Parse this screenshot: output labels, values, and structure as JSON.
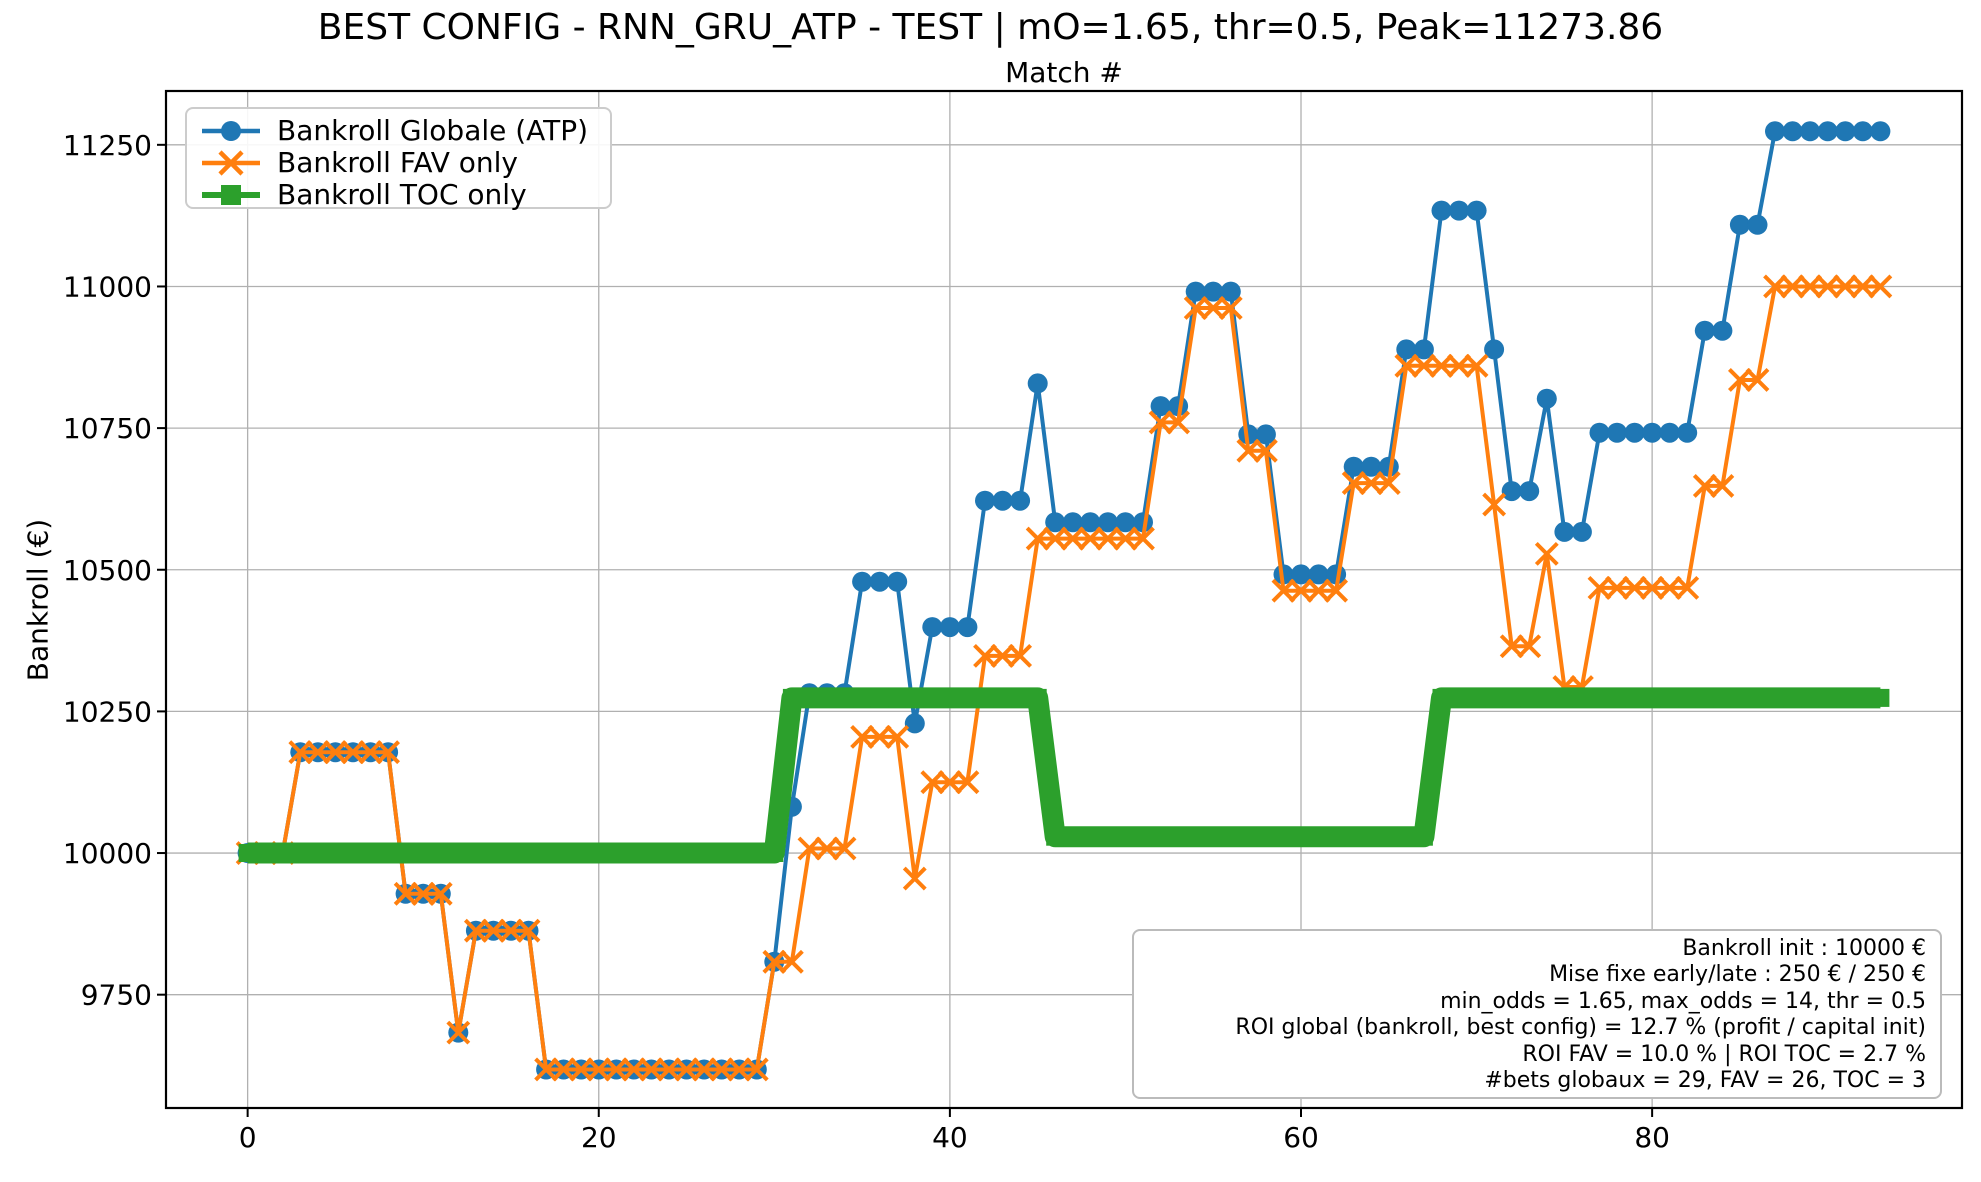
{
  "chart_data": {
    "type": "line",
    "title": "BEST CONFIG - RNN_GRU_ATP - TEST | mO=1.65, thr=0.5, Peak=11273.86",
    "axes_title": "Match #",
    "xlabel": "Match #",
    "ylabel": "Bankroll (€)",
    "x": "match index 0..93",
    "x_ticks": [
      0,
      20,
      40,
      60,
      80
    ],
    "y_ticks": [
      9750,
      10000,
      10250,
      10500,
      10750,
      11000,
      11250
    ],
    "xlim": [
      -4.65,
      97.65
    ],
    "ylim": [
      9550,
      11345
    ],
    "grid": true,
    "grid_color": "#b0b0b0",
    "spine_color": "#000000",
    "legend_position": "upper left",
    "peak": 11273.86,
    "series": [
      {
        "name": "Bankroll Globale (ATP)",
        "color": "#1f77b4",
        "marker": "circle",
        "linewidth": 4,
        "values": [
          10000,
          10000,
          10000,
          10178,
          10178,
          10178,
          10178,
          10178,
          10178,
          9928,
          9928,
          9928,
          9683,
          9863,
          9863,
          9863,
          9863,
          9618,
          9618,
          9618,
          9618,
          9618,
          9618,
          9618,
          9618,
          9618,
          9618,
          9618,
          9618,
          9618,
          9808,
          10081.86,
          10281.86,
          10281.86,
          10281.86,
          10478.86,
          10478.86,
          10478.86,
          10228.86,
          10398.86,
          10398.86,
          10398.86,
          10621.86,
          10621.86,
          10621.86,
          10828.86,
          10583.86,
          10583.86,
          10583.86,
          10583.86,
          10583.86,
          10583.86,
          10788.86,
          10788.86,
          10990.86,
          10990.86,
          10990.86,
          10738.86,
          10738.86,
          10491.86,
          10491.86,
          10491.86,
          10491.86,
          10681.86,
          10681.86,
          10681.86,
          10888.86,
          10888.86,
          11133.86,
          11133.86,
          11133.86,
          10888.86,
          10638.86,
          10638.86,
          10801.86,
          10566.86,
          10566.86,
          10741.86,
          10741.86,
          10741.86,
          10741.86,
          10741.86,
          10741.86,
          10921.86,
          10921.86,
          11108.86,
          11108.86,
          11273.86,
          11273.86,
          11273.86,
          11273.86,
          11273.86,
          11273.86,
          11273.86
        ]
      },
      {
        "name": "Bankroll FAV only",
        "color": "#ff7f0e",
        "marker": "x",
        "linewidth": 4,
        "values": [
          10000,
          10000,
          10000,
          10178,
          10178,
          10178,
          10178,
          10178,
          10178,
          9928,
          9928,
          9928,
          9683,
          9863,
          9863,
          9863,
          9863,
          9618,
          9618,
          9618,
          9618,
          9618,
          9618,
          9618,
          9618,
          9618,
          9618,
          9618,
          9618,
          9618,
          9808,
          9808,
          10008,
          10008,
          10008,
          10205,
          10205,
          10205,
          9955,
          10125,
          10125,
          10125,
          10348,
          10348,
          10348,
          10555,
          10555,
          10555,
          10555,
          10555,
          10555,
          10555,
          10760,
          10760,
          10962,
          10962,
          10962,
          10710,
          10710,
          10463,
          10463,
          10463,
          10463,
          10653,
          10653,
          10653,
          10860,
          10860,
          10860,
          10860,
          10860,
          10615,
          10365,
          10365,
          10528,
          10293,
          10293,
          10468,
          10468,
          10468,
          10468,
          10468,
          10468,
          10648,
          10648,
          10835,
          10835,
          11000,
          11000,
          11000,
          11000,
          11000,
          11000,
          11000
        ]
      },
      {
        "name": "Bankroll TOC only",
        "color": "#2ca02c",
        "marker": "square",
        "linewidth": 21,
        "values": [
          10000,
          10000,
          10000,
          10000,
          10000,
          10000,
          10000,
          10000,
          10000,
          10000,
          10000,
          10000,
          10000,
          10000,
          10000,
          10000,
          10000,
          10000,
          10000,
          10000,
          10000,
          10000,
          10000,
          10000,
          10000,
          10000,
          10000,
          10000,
          10000,
          10000,
          10000,
          10273.86,
          10273.86,
          10273.86,
          10273.86,
          10273.86,
          10273.86,
          10273.86,
          10273.86,
          10273.86,
          10273.86,
          10273.86,
          10273.86,
          10273.86,
          10273.86,
          10273.86,
          10028.86,
          10028.86,
          10028.86,
          10028.86,
          10028.86,
          10028.86,
          10028.86,
          10028.86,
          10028.86,
          10028.86,
          10028.86,
          10028.86,
          10028.86,
          10028.86,
          10028.86,
          10028.86,
          10028.86,
          10028.86,
          10028.86,
          10028.86,
          10028.86,
          10028.86,
          10273.86,
          10273.86,
          10273.86,
          10273.86,
          10273.86,
          10273.86,
          10273.86,
          10273.86,
          10273.86,
          10273.86,
          10273.86,
          10273.86,
          10273.86,
          10273.86,
          10273.86,
          10273.86,
          10273.86,
          10273.86,
          10273.86,
          10273.86,
          10273.86,
          10273.86,
          10273.86,
          10273.86,
          10273.86,
          10273.86
        ]
      }
    ]
  },
  "stats_box": {
    "lines": [
      "Bankroll init : 10000 €",
      "Mise fixe early/late : 250 € / 250 €",
      "min_odds = 1.65, max_odds = 14, thr = 0.5",
      "ROI global (bankroll, best config) = 12.7 % (profit / capital init)",
      "ROI FAV = 10.0 % | ROI TOC = 2.7 %",
      "#bets globaux = 29, FAV = 26, TOC = 3"
    ]
  }
}
